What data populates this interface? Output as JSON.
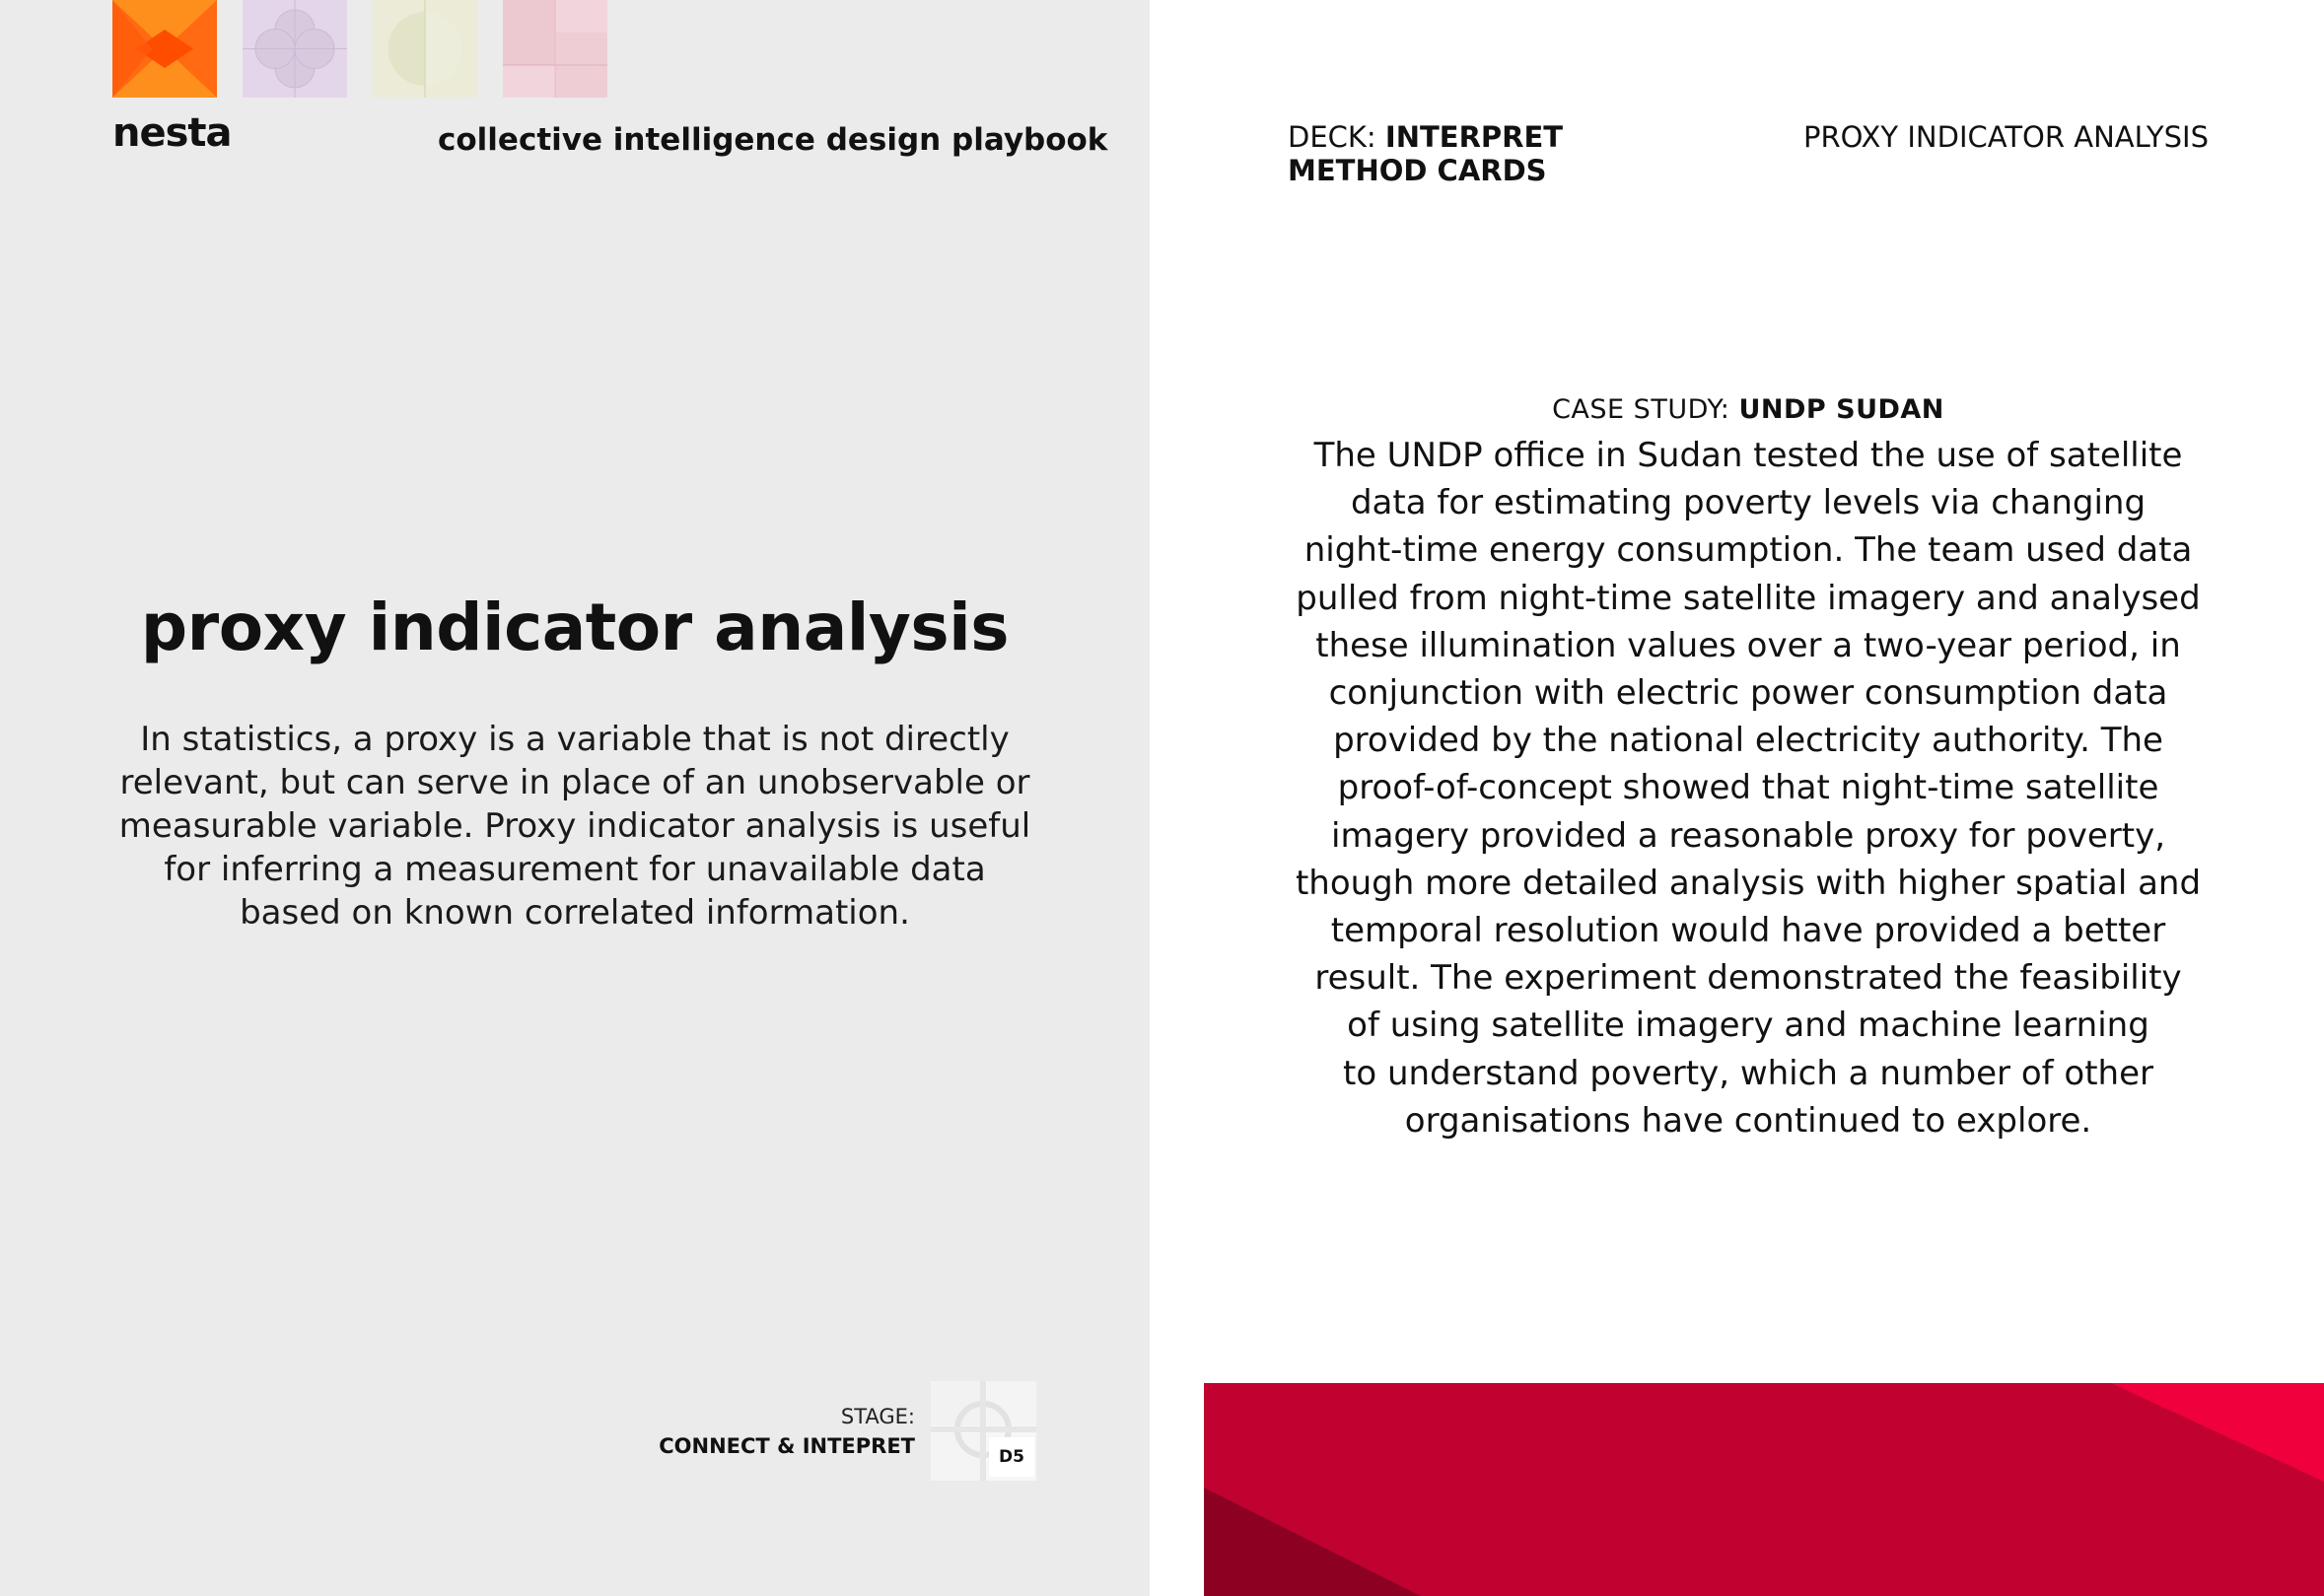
{
  "left_card": {
    "brand": "nesta",
    "playbook_title": "collective intelligence design playbook",
    "method_title": "proxy indicator analysis",
    "intro_lines": [
      "In statistics, a proxy is a variable that is not directly",
      "relevant, but can serve in place of an unobservable or",
      "measurable variable. Proxy indicator analysis is useful",
      "for inferring a measurement for unavailable data",
      "based on known correlated information."
    ],
    "stage_label": "STAGE:",
    "stage_value": "CONNECT & INTEPRET",
    "card_code": "D5",
    "stage_icons": [
      "orange-bowtie-icon",
      "lavender-circles-icon",
      "cream-half-circle-icon",
      "pink-squares-icon"
    ],
    "colors": {
      "background": "#ebebeb",
      "orange": "#ff6a13",
      "yellow": "#ffb81c"
    }
  },
  "right_card": {
    "deck_prefix": "DECK:",
    "deck_name_line1": "INTERPRET",
    "deck_name_line2": "METHOD CARDS",
    "method_name": "PROXY INDICATOR ANALYSIS",
    "case_study_prefix": "CASE STUDY:",
    "case_study_name": "UNDP SUDAN",
    "case_study_lines": [
      "The UNDP office in Sudan tested the use of satellite",
      "data for estimating poverty levels via changing",
      "night-time energy consumption. The team used data",
      "pulled from night-time satellite imagery and analysed",
      "these illumination values over a two-year period, in",
      "conjunction with electric power consumption data",
      "provided by the national electricity authority. The",
      "proof-of-concept showed that night-time satellite",
      "imagery provided a reasonable proxy for poverty,",
      "though more detailed analysis with higher spatial and",
      "temporal resolution would have provided a better",
      "result. The experiment demonstrated the feasibility",
      "of using satellite imagery and machine learning",
      "to understand poverty, which a number of other",
      "organisations have continued to explore."
    ],
    "colors": {
      "banner": "#c10230",
      "banner_light": "#f0003c",
      "banner_dark": "#8c0022"
    }
  }
}
